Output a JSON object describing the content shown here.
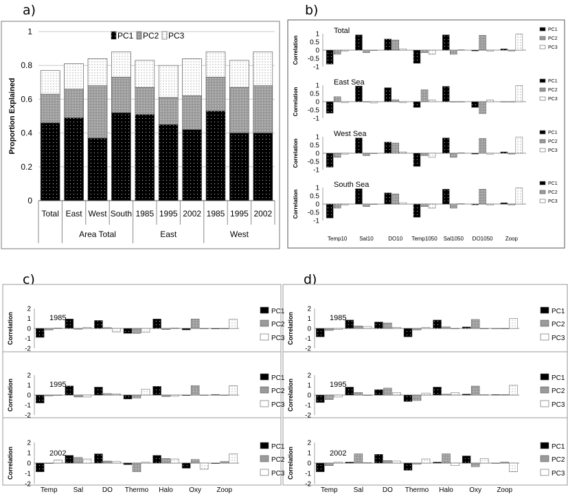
{
  "panel_labels": {
    "a": "a)",
    "b": "b)",
    "c": "c)",
    "d": "d)"
  },
  "colors": {
    "PC1": "#000000",
    "PC2": "#9a9a9a",
    "PC3": "#ffffff",
    "grid": "#c8c8c8",
    "frame": "#9a9a9a"
  },
  "chart_data": [
    {
      "id": "a",
      "type": "bar",
      "stacked": true,
      "ylabel": "Proportion Explained",
      "ylim": [
        0,
        1
      ],
      "yticks": [
        0,
        0.2,
        0.4,
        0.6,
        0.8,
        1
      ],
      "ytick_labels": [
        "0",
        "0.2",
        "0.4",
        "0.6",
        "0.8",
        "1"
      ],
      "categories": [
        "Total",
        "East",
        "West",
        "South",
        "1985",
        "1995",
        "2002",
        "1985",
        "1995",
        "2002"
      ],
      "group_labels": [
        "Area Total",
        "East",
        "West"
      ],
      "series": [
        {
          "name": "PC1",
          "values": [
            0.46,
            0.49,
            0.37,
            0.52,
            0.51,
            0.45,
            0.42,
            0.53,
            0.4,
            0.4
          ]
        },
        {
          "name": "PC2",
          "values": [
            0.17,
            0.17,
            0.31,
            0.21,
            0.16,
            0.16,
            0.2,
            0.2,
            0.27,
            0.28
          ]
        },
        {
          "name": "PC3",
          "values": [
            0.14,
            0.15,
            0.16,
            0.15,
            0.16,
            0.19,
            0.22,
            0.15,
            0.16,
            0.2
          ]
        }
      ],
      "grid": true,
      "legend": "top"
    },
    {
      "id": "b",
      "type": "bar",
      "ylabel": "Correlation",
      "ylim": [
        -1,
        1
      ],
      "yticks": [
        -1,
        -0.5,
        0,
        0.5,
        1
      ],
      "ytick_labels": [
        "-1",
        "-0.5",
        "0",
        "0.5",
        "1"
      ],
      "categories": [
        "Temp10",
        "Sal10",
        "DO10",
        "Temp1050",
        "Sal1050",
        "DO1050",
        "Zoop"
      ],
      "legend": [
        "PC1",
        "PC2",
        "PC3"
      ],
      "subplots": [
        {
          "title": "Total",
          "series": [
            {
              "name": "PC1",
              "values": [
                -0.85,
                0.93,
                0.68,
                -0.8,
                0.93,
                -0.05,
                0.08
              ]
            },
            {
              "name": "PC2",
              "values": [
                -0.25,
                -0.15,
                0.62,
                -0.15,
                -0.25,
                0.9,
                -0.05
              ]
            },
            {
              "name": "PC3",
              "values": [
                -0.05,
                -0.02,
                0.08,
                -0.25,
                0.02,
                -0.05,
                0.98
              ]
            }
          ]
        },
        {
          "title": "East Sea",
          "series": [
            {
              "name": "PC1",
              "values": [
                -0.7,
                0.95,
                0.85,
                -0.35,
                0.93,
                -0.35,
                0.0
              ]
            },
            {
              "name": "PC2",
              "values": [
                0.3,
                0.0,
                0.12,
                0.72,
                0.0,
                -0.72,
                0.0
              ]
            },
            {
              "name": "PC3",
              "values": [
                -0.05,
                -0.08,
                -0.05,
                0.1,
                -0.03,
                0.1,
                0.98
              ]
            }
          ]
        },
        {
          "title": "West Sea",
          "series": [
            {
              "name": "PC1",
              "values": [
                -0.85,
                0.93,
                0.68,
                -0.8,
                0.93,
                -0.05,
                0.08
              ]
            },
            {
              "name": "PC2",
              "values": [
                -0.25,
                -0.15,
                0.62,
                -0.15,
                -0.25,
                0.9,
                -0.05
              ]
            },
            {
              "name": "PC3",
              "values": [
                -0.05,
                -0.02,
                0.08,
                -0.25,
                0.02,
                -0.05,
                0.98
              ]
            }
          ]
        },
        {
          "title": "South Sea",
          "series": [
            {
              "name": "PC1",
              "values": [
                -0.85,
                0.93,
                0.68,
                -0.8,
                0.9,
                -0.05,
                0.08
              ]
            },
            {
              "name": "PC2",
              "values": [
                -0.25,
                -0.15,
                0.62,
                -0.15,
                -0.25,
                0.9,
                -0.05
              ]
            },
            {
              "name": "PC3",
              "values": [
                -0.05,
                -0.02,
                0.08,
                -0.25,
                0.02,
                -0.05,
                0.98
              ]
            }
          ]
        }
      ]
    },
    {
      "id": "c",
      "type": "bar",
      "ylabel": "Correlation",
      "ylim": [
        -2,
        2
      ],
      "yticks": [
        -2,
        -1,
        0,
        1,
        2
      ],
      "ytick_labels": [
        "-2",
        "-1",
        "0",
        "1",
        "2"
      ],
      "categories": [
        "Temp",
        "Sal",
        "DO",
        "Thermo",
        "Halo",
        "Oxy",
        "Zoop"
      ],
      "legend": [
        "PC1",
        "PC2",
        "PC3"
      ],
      "subplots": [
        {
          "title": "1985",
          "series": [
            {
              "name": "PC1",
              "values": [
                -0.9,
                0.95,
                0.8,
                -0.5,
                0.95,
                -0.15,
                -0.05
              ]
            },
            {
              "name": "PC2",
              "values": [
                -0.15,
                -0.08,
                0.08,
                -0.5,
                -0.12,
                0.95,
                -0.05
              ]
            },
            {
              "name": "PC3",
              "values": [
                0.05,
                0.1,
                -0.35,
                -0.4,
                0.05,
                -0.05,
                0.92
              ]
            }
          ]
        },
        {
          "title": "1995",
          "series": [
            {
              "name": "PC1",
              "values": [
                -0.8,
                0.92,
                0.8,
                -0.4,
                0.88,
                -0.05,
                0.05
              ]
            },
            {
              "name": "PC2",
              "values": [
                -0.08,
                -0.2,
                0.15,
                -0.3,
                -0.15,
                0.95,
                0.0
              ]
            },
            {
              "name": "PC3",
              "values": [
                0.0,
                -0.2,
                0.12,
                0.6,
                -0.1,
                -0.05,
                0.95
              ]
            }
          ]
        },
        {
          "title": "2002",
          "series": [
            {
              "name": "PC1",
              "values": [
                -0.85,
                0.75,
                0.9,
                -0.15,
                0.75,
                -0.5,
                -0.05
              ]
            },
            {
              "name": "PC2",
              "values": [
                -0.05,
                0.55,
                0.2,
                -0.85,
                0.45,
                0.35,
                0.15
              ]
            },
            {
              "name": "PC3",
              "values": [
                0.3,
                0.4,
                0.15,
                0.1,
                0.4,
                -0.6,
                0.9
              ]
            }
          ]
        }
      ]
    },
    {
      "id": "d",
      "type": "bar",
      "ylabel": "Correlation",
      "ylim": [
        -2,
        2
      ],
      "yticks": [
        -2,
        -1,
        0,
        1,
        2
      ],
      "ytick_labels": [
        "-2",
        "-1",
        "0",
        "1",
        "2"
      ],
      "categories": [
        "Temp",
        "Sal",
        "DO",
        "Thermo",
        "Halo",
        "Oxy",
        "Zoop"
      ],
      "legend": [
        "PC1",
        "PC2",
        "PC3"
      ],
      "subplots": [
        {
          "title": "1985",
          "series": [
            {
              "name": "PC1",
              "values": [
                -0.85,
                0.85,
                0.65,
                -0.85,
                0.85,
                0.15,
                0.0
              ]
            },
            {
              "name": "PC2",
              "values": [
                -0.2,
                0.25,
                0.55,
                -0.15,
                0.15,
                0.9,
                -0.05
              ]
            },
            {
              "name": "PC3",
              "values": [
                -0.1,
                0.2,
                0.1,
                0.1,
                0.0,
                -0.05,
                1.0
              ]
            }
          ]
        },
        {
          "title": "1995",
          "series": [
            {
              "name": "PC1",
              "values": [
                -0.75,
                0.8,
                0.55,
                -0.65,
                0.8,
                0.1,
                0.05
              ]
            },
            {
              "name": "PC2",
              "values": [
                -0.45,
                0.25,
                0.7,
                -0.55,
                0.1,
                0.9,
                0.05
              ]
            },
            {
              "name": "PC3",
              "values": [
                -0.2,
                -0.05,
                0.25,
                0.2,
                0.25,
                0.05,
                0.98
              ]
            }
          ]
        },
        {
          "title": "2002",
          "series": [
            {
              "name": "PC1",
              "values": [
                -0.85,
                0.1,
                0.85,
                -0.7,
                0.1,
                0.7,
                0.0
              ]
            },
            {
              "name": "PC2",
              "values": [
                -0.25,
                0.9,
                0.25,
                -0.1,
                0.9,
                -0.35,
                0.1
              ]
            },
            {
              "name": "PC3",
              "values": [
                0.1,
                0.05,
                0.2,
                0.4,
                -0.25,
                0.45,
                -0.85
              ]
            }
          ]
        }
      ]
    }
  ]
}
